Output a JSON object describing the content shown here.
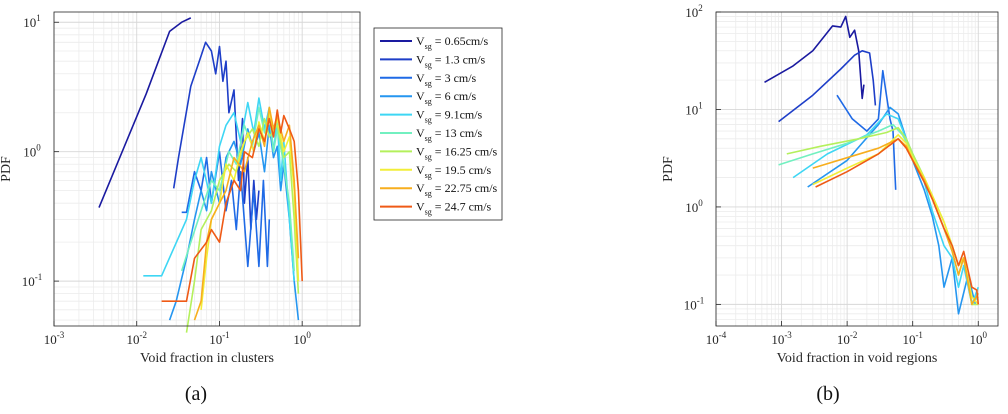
{
  "figure": {
    "captions": [
      "(a)",
      "(b)"
    ]
  },
  "legend": {
    "prefix": "V",
    "subscript": "sg",
    "entries": [
      " = 0.65cm/s",
      " = 1.3 cm/s",
      " = 3 cm/s",
      " = 6 cm/s",
      " = 9.1cm/s",
      " = 13 cm/s",
      " = 16.25 cm/s",
      " = 19.5 cm/s",
      " = 22.75 cm/s",
      " = 24.7 cm/s"
    ]
  },
  "colors": [
    "#1a1aa0",
    "#1e3ec8",
    "#1f6ae6",
    "#2596f0",
    "#3ed6f4",
    "#72f0c0",
    "#b4f05c",
    "#f2ee38",
    "#f7ae1e",
    "#ef5a16"
  ],
  "chart_data": [
    {
      "type": "line",
      "panel": "(a)",
      "xlabel": "Void fraction in clusters",
      "ylabel": "PDF",
      "xscale": "log",
      "yscale": "log",
      "xlim": [
        0.001,
        5
      ],
      "ylim": [
        0.045,
        12
      ],
      "xticks": [
        0.001,
        0.01,
        0.1,
        1
      ],
      "xtick_labels": [
        [
          "10",
          "-3"
        ],
        [
          "10",
          "-2"
        ],
        [
          "10",
          "-1"
        ],
        [
          "10",
          "0"
        ]
      ],
      "yticks": [
        0.1,
        1,
        10
      ],
      "ytick_labels": [
        [
          "10",
          "-1"
        ],
        [
          "10",
          "0"
        ],
        [
          "10",
          "1"
        ]
      ],
      "grid": true,
      "legend_position": "outside-right",
      "series": [
        {
          "name": "V_sg = 0.65cm/s",
          "x": [
            0.0035,
            0.013,
            0.025,
            0.035,
            0.045
          ],
          "y": [
            0.37,
            2.8,
            8.5,
            10.0,
            10.8
          ]
        },
        {
          "name": "V_sg = 1.3 cm/s",
          "x": [
            0.028,
            0.032,
            0.045,
            0.06,
            0.068,
            0.08,
            0.09,
            0.1,
            0.11,
            0.12,
            0.13,
            0.15,
            0.17,
            0.19,
            0.2,
            0.22,
            0.24,
            0.26,
            0.28,
            0.3
          ],
          "y": [
            0.52,
            0.9,
            3.2,
            5.5,
            7.0,
            6.0,
            4.0,
            6.5,
            3.5,
            5.0,
            2.0,
            3.0,
            0.6,
            1.8,
            0.4,
            0.9,
            0.25,
            0.6,
            0.3,
            0.5
          ]
        },
        {
          "name": "V_sg = 3 cm/s",
          "x": [
            0.035,
            0.04,
            0.05,
            0.06,
            0.07,
            0.08,
            0.1,
            0.12,
            0.14,
            0.16,
            0.18,
            0.22,
            0.26,
            0.3,
            0.34,
            0.38,
            0.4
          ],
          "y": [
            0.34,
            0.34,
            0.7,
            0.5,
            0.9,
            0.4,
            1.0,
            0.35,
            0.6,
            0.25,
            0.7,
            0.13,
            0.5,
            0.13,
            0.6,
            0.13,
            0.3
          ]
        },
        {
          "name": "V_sg = 6 cm/s",
          "x": [
            0.025,
            0.03,
            0.04,
            0.05,
            0.06,
            0.07,
            0.08,
            0.1,
            0.12,
            0.15,
            0.18,
            0.22,
            0.26,
            0.3,
            0.35,
            0.4,
            0.45,
            0.5,
            0.55,
            0.6,
            0.7,
            0.8,
            0.9
          ],
          "y": [
            0.05,
            0.07,
            0.15,
            0.3,
            0.5,
            0.35,
            0.7,
            0.4,
            0.9,
            1.2,
            0.8,
            1.5,
            1.0,
            1.4,
            0.7,
            1.6,
            0.9,
            1.1,
            0.5,
            0.8,
            0.3,
            0.1,
            0.05
          ]
        },
        {
          "name": "V_sg = 9.1cm/s",
          "x": [
            0.012,
            0.02,
            0.04,
            0.05,
            0.06,
            0.08,
            0.1,
            0.12,
            0.15,
            0.18,
            0.22,
            0.26,
            0.3,
            0.35,
            0.4,
            0.45,
            0.5,
            0.55,
            0.6,
            0.7,
            0.8
          ],
          "y": [
            0.11,
            0.11,
            0.3,
            0.6,
            0.9,
            0.4,
            1.1,
            1.6,
            2.0,
            1.2,
            2.4,
            1.4,
            2.6,
            1.5,
            2.2,
            1.0,
            1.8,
            0.6,
            1.2,
            0.3,
            0.1
          ]
        },
        {
          "name": "V_sg = 13 cm/s",
          "x": [
            0.035,
            0.045,
            0.06,
            0.08,
            0.1,
            0.13,
            0.16,
            0.2,
            0.25,
            0.3,
            0.35,
            0.4,
            0.45,
            0.5,
            0.6,
            0.7,
            0.8
          ],
          "y": [
            0.12,
            0.2,
            0.35,
            0.6,
            0.5,
            1.0,
            0.8,
            1.6,
            1.1,
            2.2,
            1.4,
            1.9,
            1.0,
            1.5,
            0.8,
            0.4,
            0.12
          ]
        },
        {
          "name": "V_sg = 16.25 cm/s",
          "x": [
            0.04,
            0.05,
            0.06,
            0.08,
            0.1,
            0.13,
            0.16,
            0.2,
            0.25,
            0.3,
            0.35,
            0.4,
            0.5,
            0.6,
            0.7,
            0.8,
            0.9
          ],
          "y": [
            0.04,
            0.1,
            0.25,
            0.35,
            0.6,
            0.8,
            0.7,
            1.2,
            1.5,
            1.1,
            1.8,
            1.3,
            1.6,
            0.9,
            1.0,
            0.3,
            0.08
          ]
        },
        {
          "name": "V_sg = 19.5 cm/s",
          "x": [
            0.06,
            0.07,
            0.08,
            0.1,
            0.12,
            0.15,
            0.18,
            0.22,
            0.26,
            0.3,
            0.35,
            0.4,
            0.45,
            0.5,
            0.6,
            0.7,
            0.8,
            0.9
          ],
          "y": [
            0.06,
            0.15,
            0.3,
            0.4,
            0.8,
            0.6,
            1.0,
            1.4,
            1.0,
            1.7,
            1.2,
            2.0,
            1.4,
            1.8,
            1.0,
            1.3,
            0.5,
            0.1
          ]
        },
        {
          "name": "V_sg = 22.75 cm/s",
          "x": [
            0.05,
            0.06,
            0.07,
            0.08,
            0.1,
            0.12,
            0.15,
            0.2,
            0.25,
            0.3,
            0.35,
            0.4,
            0.45,
            0.5,
            0.6,
            0.7,
            0.8,
            0.9
          ],
          "y": [
            0.05,
            0.07,
            0.2,
            0.3,
            0.4,
            0.5,
            0.9,
            0.7,
            1.2,
            1.6,
            1.1,
            2.2,
            1.5,
            1.9,
            1.2,
            1.6,
            0.6,
            0.15
          ]
        },
        {
          "name": "V_sg = 24.7 cm/s",
          "x": [
            0.02,
            0.04,
            0.05,
            0.07,
            0.08,
            0.1,
            0.12,
            0.15,
            0.18,
            0.2,
            0.25,
            0.3,
            0.35,
            0.4,
            0.45,
            0.5,
            0.55,
            0.6,
            0.7,
            0.8,
            0.9,
            1.0
          ],
          "y": [
            0.07,
            0.07,
            0.15,
            0.2,
            0.25,
            0.2,
            0.4,
            0.6,
            0.5,
            1.0,
            0.9,
            1.5,
            1.2,
            1.8,
            1.3,
            2.1,
            1.4,
            1.9,
            1.5,
            1.2,
            0.5,
            0.1
          ]
        }
      ]
    },
    {
      "type": "line",
      "panel": "(b)",
      "xlabel": "Void fraction in void regions",
      "ylabel": "PDF",
      "xscale": "log",
      "yscale": "log",
      "xlim": [
        0.0001,
        2
      ],
      "ylim": [
        0.06,
        100
      ],
      "xticks": [
        0.0001,
        0.001,
        0.01,
        0.1,
        1
      ],
      "xtick_labels": [
        [
          "10",
          "-4"
        ],
        [
          "10",
          "-3"
        ],
        [
          "10",
          "-2"
        ],
        [
          "10",
          "-1"
        ],
        [
          "10",
          "0"
        ]
      ],
      "yticks": [
        0.1,
        1,
        10,
        100
      ],
      "ytick_labels": [
        [
          "10",
          "-1"
        ],
        [
          "10",
          "0"
        ],
        [
          "10",
          "1"
        ],
        [
          "10",
          "2"
        ]
      ],
      "grid": true,
      "series": [
        {
          "name": "V_sg = 0.65cm/s",
          "x": [
            0.00055,
            0.0015,
            0.003,
            0.006,
            0.008,
            0.0095,
            0.011,
            0.013,
            0.015,
            0.017,
            0.018
          ],
          "y": [
            19,
            28,
            40,
            72,
            70,
            90,
            55,
            65,
            40,
            13,
            18
          ]
        },
        {
          "name": "V_sg = 1.3 cm/s",
          "x": [
            0.0009,
            0.003,
            0.008,
            0.013,
            0.017,
            0.022,
            0.025,
            0.027
          ],
          "y": [
            7.5,
            14,
            26,
            36,
            40,
            38,
            20,
            11
          ]
        },
        {
          "name": "V_sg = 3 cm/s",
          "x": [
            0.007,
            0.012,
            0.02,
            0.03,
            0.035,
            0.045,
            0.05,
            0.055
          ],
          "y": [
            14,
            8,
            6,
            8,
            25,
            8,
            6,
            1.5
          ]
        },
        {
          "name": "V_sg = 6 cm/s",
          "x": [
            0.0025,
            0.01,
            0.03,
            0.045,
            0.06,
            0.08,
            0.1,
            0.15,
            0.2,
            0.25,
            0.3,
            0.4,
            0.5,
            0.7,
            0.9
          ],
          "y": [
            1.6,
            3.0,
            7.0,
            10.5,
            9.0,
            5.0,
            3.0,
            1.5,
            0.8,
            0.4,
            0.15,
            0.3,
            0.08,
            0.2,
            0.1
          ]
        },
        {
          "name": "V_sg = 9.1cm/s",
          "x": [
            0.0015,
            0.005,
            0.02,
            0.04,
            0.06,
            0.08,
            0.1,
            0.15,
            0.2,
            0.3,
            0.4,
            0.5,
            0.6,
            0.8,
            1.0
          ],
          "y": [
            2.0,
            3.5,
            5.5,
            9.0,
            8.0,
            5.0,
            3.5,
            1.8,
            0.9,
            0.4,
            0.3,
            0.15,
            0.25,
            0.1,
            0.15
          ]
        },
        {
          "name": "V_sg = 13 cm/s",
          "x": [
            0.0009,
            0.003,
            0.01,
            0.03,
            0.05,
            0.07,
            0.1,
            0.15,
            0.2,
            0.3,
            0.4,
            0.5,
            0.6,
            0.8,
            1.0
          ],
          "y": [
            2.7,
            3.5,
            4.5,
            6.0,
            7.0,
            5.5,
            3.5,
            2.0,
            1.2,
            0.6,
            0.35,
            0.2,
            0.3,
            0.1,
            0.12
          ]
        },
        {
          "name": "V_sg = 16.25 cm/s",
          "x": [
            0.0012,
            0.004,
            0.015,
            0.04,
            0.06,
            0.08,
            0.1,
            0.15,
            0.2,
            0.3,
            0.4,
            0.5,
            0.6,
            0.8,
            1.0
          ],
          "y": [
            3.5,
            4.2,
            5.0,
            5.8,
            6.5,
            5.0,
            3.5,
            2.0,
            1.3,
            0.7,
            0.4,
            0.25,
            0.3,
            0.1,
            0.1
          ]
        },
        {
          "name": "V_sg = 19.5 cm/s",
          "x": [
            0.003,
            0.01,
            0.03,
            0.06,
            0.08,
            0.1,
            0.15,
            0.2,
            0.3,
            0.4,
            0.5,
            0.6,
            0.8,
            1.0
          ],
          "y": [
            1.7,
            2.5,
            3.5,
            5.5,
            4.5,
            3.2,
            2.0,
            1.3,
            0.7,
            0.4,
            0.25,
            0.3,
            0.12,
            0.1
          ]
        },
        {
          "name": "V_sg = 22.75 cm/s",
          "x": [
            0.003,
            0.01,
            0.03,
            0.06,
            0.08,
            0.1,
            0.15,
            0.2,
            0.3,
            0.4,
            0.5,
            0.6,
            0.8,
            1.0
          ],
          "y": [
            2.5,
            3.2,
            4.0,
            5.0,
            4.2,
            3.0,
            1.9,
            1.2,
            0.6,
            0.35,
            0.2,
            0.3,
            0.1,
            0.13
          ]
        },
        {
          "name": "V_sg = 24.7 cm/s",
          "x": [
            0.0033,
            0.01,
            0.03,
            0.06,
            0.08,
            0.1,
            0.15,
            0.2,
            0.3,
            0.4,
            0.5,
            0.6,
            0.8,
            0.95,
            1.0
          ],
          "y": [
            1.6,
            2.3,
            3.5,
            5.0,
            4.0,
            3.0,
            1.8,
            1.2,
            0.6,
            0.4,
            0.25,
            0.35,
            0.15,
            0.14,
            0.1
          ]
        }
      ]
    }
  ]
}
